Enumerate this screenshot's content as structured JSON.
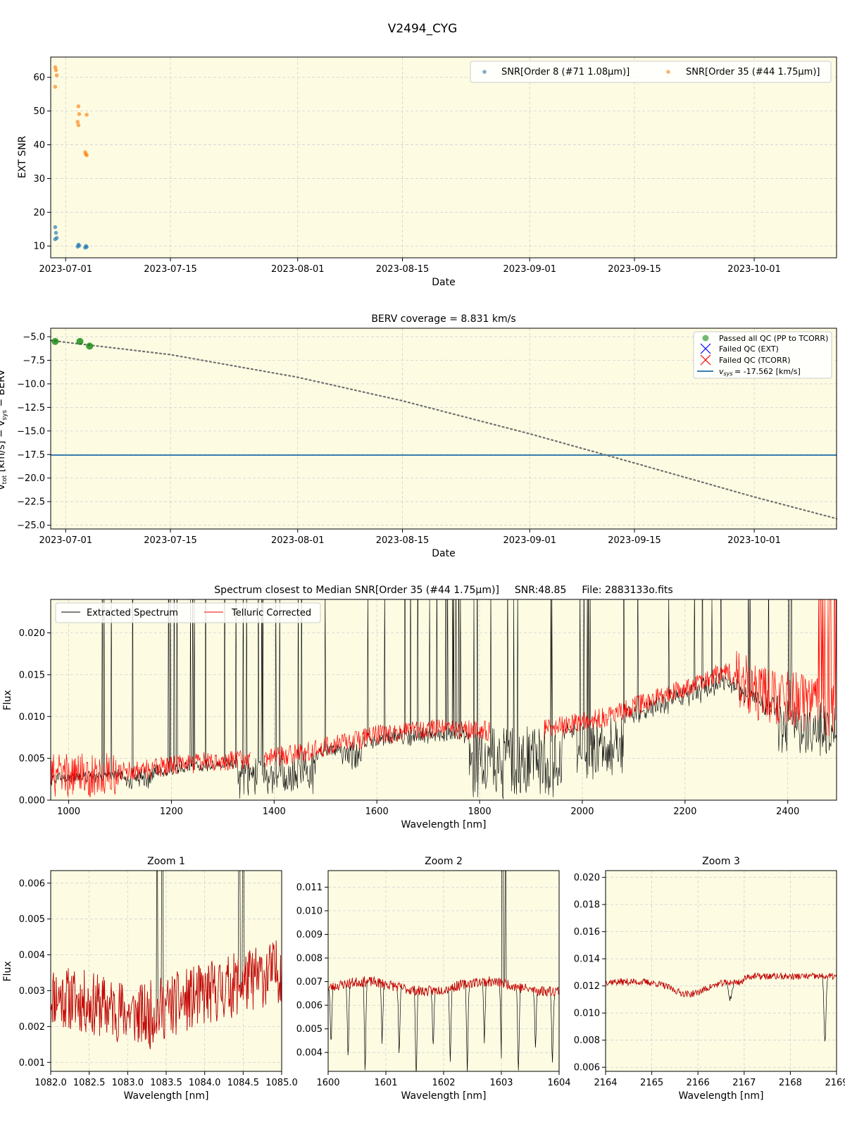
{
  "suptitle": "V2494_CYG",
  "colors": {
    "panel_bg": "#fdfce3",
    "snr_order8": "#1f77b4",
    "snr_order35": "#ff7f0e",
    "qc_pass": "#008000",
    "qc_fail_ext": "#0000ff",
    "qc_fail_tcorr": "#ff0000",
    "vsys_line": "#1f6ea8",
    "extracted": "#000000",
    "telluric": "#ff0000",
    "berv_curve": "#707070"
  },
  "chart_data": [
    {
      "id": "snr",
      "type": "scatter",
      "title": "",
      "xlabel": "Date",
      "ylabel": "EXT SNR",
      "x_is_date": true,
      "xlim": [
        "2023-06-29",
        "2023-10-12"
      ],
      "xticks": [
        "2023-07-01",
        "2023-07-15",
        "2023-08-01",
        "2023-08-15",
        "2023-09-01",
        "2023-09-15",
        "2023-10-01"
      ],
      "ylim": [
        6.5,
        66
      ],
      "yticks": [
        10,
        20,
        30,
        40,
        50,
        60
      ],
      "grid": true,
      "legend_position": "top-right",
      "series": [
        {
          "name": "SNR[Order 8 (#71 1.08μm)]",
          "color": "#1f77b4",
          "points": [
            [
              "2023-06-29",
              15.6
            ],
            [
              "2023-06-29",
              13.9
            ],
            [
              "2023-06-29",
              12.4
            ],
            [
              "2023-06-29",
              12.0
            ],
            [
              "2023-07-02",
              10.4
            ],
            [
              "2023-07-02",
              10.1
            ],
            [
              "2023-07-02",
              9.8
            ],
            [
              "2023-07-03",
              10.0
            ],
            [
              "2023-07-03",
              9.7
            ],
            [
              "2023-07-03",
              9.5
            ]
          ]
        },
        {
          "name": "SNR[Order 35 (#44 1.75μm)]",
          "color": "#ff7f0e",
          "points": [
            [
              "2023-06-29",
              63.0
            ],
            [
              "2023-06-29",
              62.1
            ],
            [
              "2023-06-29",
              60.6
            ],
            [
              "2023-06-29",
              57.2
            ],
            [
              "2023-07-02",
              51.4
            ],
            [
              "2023-07-02",
              49.1
            ],
            [
              "2023-07-02",
              46.8
            ],
            [
              "2023-07-02",
              45.8
            ],
            [
              "2023-07-03",
              48.9
            ],
            [
              "2023-07-03",
              37.8
            ],
            [
              "2023-07-03",
              37.2
            ],
            [
              "2023-07-03",
              36.9
            ]
          ]
        }
      ]
    },
    {
      "id": "berv",
      "type": "scatter",
      "title": "BERV coverage = 8.831 km/s",
      "xlabel": "Date",
      "ylabel": "v_tot [km/s] − v_sys − BERV",
      "x_is_date": true,
      "xlim": [
        "2023-06-29",
        "2023-10-12"
      ],
      "xticks": [
        "2023-07-01",
        "2023-07-15",
        "2023-08-01",
        "2023-08-15",
        "2023-09-01",
        "2023-09-15",
        "2023-10-01"
      ],
      "ylim": [
        -25.4,
        -4.1
      ],
      "yticks": [
        -5.0,
        -7.5,
        -10.0,
        -12.5,
        -15.0,
        -17.5,
        -20.0,
        -22.5,
        -25.0
      ],
      "grid": true,
      "legend_position": "top-right",
      "vsys": -17.562,
      "curve": {
        "dates": [
          "2023-06-29",
          "2023-07-15",
          "2023-08-01",
          "2023-08-15",
          "2023-09-01",
          "2023-09-15",
          "2023-10-01",
          "2023-10-12"
        ],
        "values": [
          -5.4,
          -6.9,
          -9.3,
          -11.8,
          -15.3,
          -18.4,
          -22.0,
          -24.3
        ]
      },
      "points_passed": [
        [
          "2023-06-29",
          -5.5
        ],
        [
          "2023-07-02",
          -5.5
        ],
        [
          "2023-07-03",
          -6.0
        ]
      ],
      "legend": [
        {
          "label": "Passed all QC (PP to TCORR)",
          "kind": "dot",
          "color": "#008000"
        },
        {
          "label": "Failed QC (EXT)",
          "kind": "x",
          "color": "#0000ff"
        },
        {
          "label": "Failed QC (TCORR)",
          "kind": "x",
          "color": "#ff0000"
        },
        {
          "label": "= -17.562 [km/s]",
          "kind": "line",
          "color": "#1f6ea8",
          "math": "v_sys"
        }
      ]
    },
    {
      "id": "spectrum",
      "type": "line",
      "title_parts": [
        "Spectrum closest to Median SNR[Order 35 (#44 1.75μm)]",
        "SNR:48.85",
        "File: 2883133o.fits"
      ],
      "xlabel": "Wavelength [nm]",
      "ylabel": "Flux",
      "xlim": [
        965,
        2495
      ],
      "ylim": [
        0.0,
        0.024
      ],
      "xticks": [
        1000,
        1200,
        1400,
        1600,
        1800,
        2000,
        2200,
        2400
      ],
      "yticks": [
        "0.000",
        "0.005",
        "0.010",
        "0.015",
        "0.020"
      ],
      "ytick_values": [
        0.0,
        0.005,
        0.01,
        0.015,
        0.02
      ],
      "grid": true,
      "legend_position": "top-left",
      "series": [
        {
          "name": "Extracted Spectrum",
          "color": "#000000"
        },
        {
          "name": "Telluric Corrected",
          "color": "#ff0000"
        }
      ],
      "continuum_nodes": {
        "wavelength": [
          965,
          1100,
          1270,
          1360,
          1450,
          1600,
          1700,
          1800,
          1930,
          2050,
          2200,
          2280,
          2350,
          2495
        ],
        "flux": [
          0.0028,
          0.0033,
          0.0046,
          0.0048,
          0.0056,
          0.0078,
          0.0085,
          0.0083,
          0.0085,
          0.01,
          0.0135,
          0.0155,
          0.0125,
          0.011
        ]
      },
      "telluric_gaps": [
        [
          1355,
          1380
        ],
        [
          1820,
          1925
        ]
      ]
    },
    {
      "id": "zoom1",
      "type": "line",
      "title": "Zoom 1",
      "xlabel": "Wavelength [nm]",
      "ylabel": "Flux",
      "xlim": [
        1082.0,
        1085.0
      ],
      "ylim": [
        0.00075,
        0.00635
      ],
      "xticks": [
        "1082.0",
        "1082.5",
        "1083.0",
        "1083.5",
        "1084.0",
        "1084.5",
        "1085.0"
      ],
      "xtick_values": [
        1082.0,
        1082.5,
        1083.0,
        1083.5,
        1084.0,
        1084.5,
        1085.0
      ],
      "yticks": [
        "0.001",
        "0.002",
        "0.003",
        "0.004",
        "0.005",
        "0.006"
      ],
      "ytick_values": [
        0.001,
        0.002,
        0.003,
        0.004,
        0.005,
        0.006
      ],
      "grid": true
    },
    {
      "id": "zoom2",
      "type": "line",
      "title": "Zoom 2",
      "xlabel": "Wavelength [nm]",
      "ylabel": "",
      "xlim": [
        1600,
        1604
      ],
      "ylim": [
        0.0032,
        0.0117
      ],
      "xticks": [
        "1600",
        "1601",
        "1602",
        "1603",
        "1604"
      ],
      "xtick_values": [
        1600,
        1601,
        1602,
        1603,
        1604
      ],
      "yticks": [
        "0.004",
        "0.005",
        "0.006",
        "0.007",
        "0.008",
        "0.009",
        "0.010",
        "0.011"
      ],
      "ytick_values": [
        0.004,
        0.005,
        0.006,
        0.007,
        0.008,
        0.009,
        0.01,
        0.011
      ],
      "grid": true
    },
    {
      "id": "zoom3",
      "type": "line",
      "title": "Zoom 3",
      "xlabel": "Wavelength [nm]",
      "ylabel": "",
      "xlim": [
        2164,
        2169
      ],
      "ylim": [
        0.0057,
        0.0205
      ],
      "xticks": [
        "2164",
        "2165",
        "2166",
        "2167",
        "2168",
        "2169"
      ],
      "xtick_values": [
        2164,
        2165,
        2166,
        2167,
        2168,
        2169
      ],
      "yticks": [
        "0.006",
        "0.008",
        "0.010",
        "0.012",
        "0.014",
        "0.016",
        "0.018",
        "0.020"
      ],
      "ytick_values": [
        0.006,
        0.008,
        0.01,
        0.012,
        0.014,
        0.016,
        0.018,
        0.02
      ],
      "grid": true
    }
  ]
}
